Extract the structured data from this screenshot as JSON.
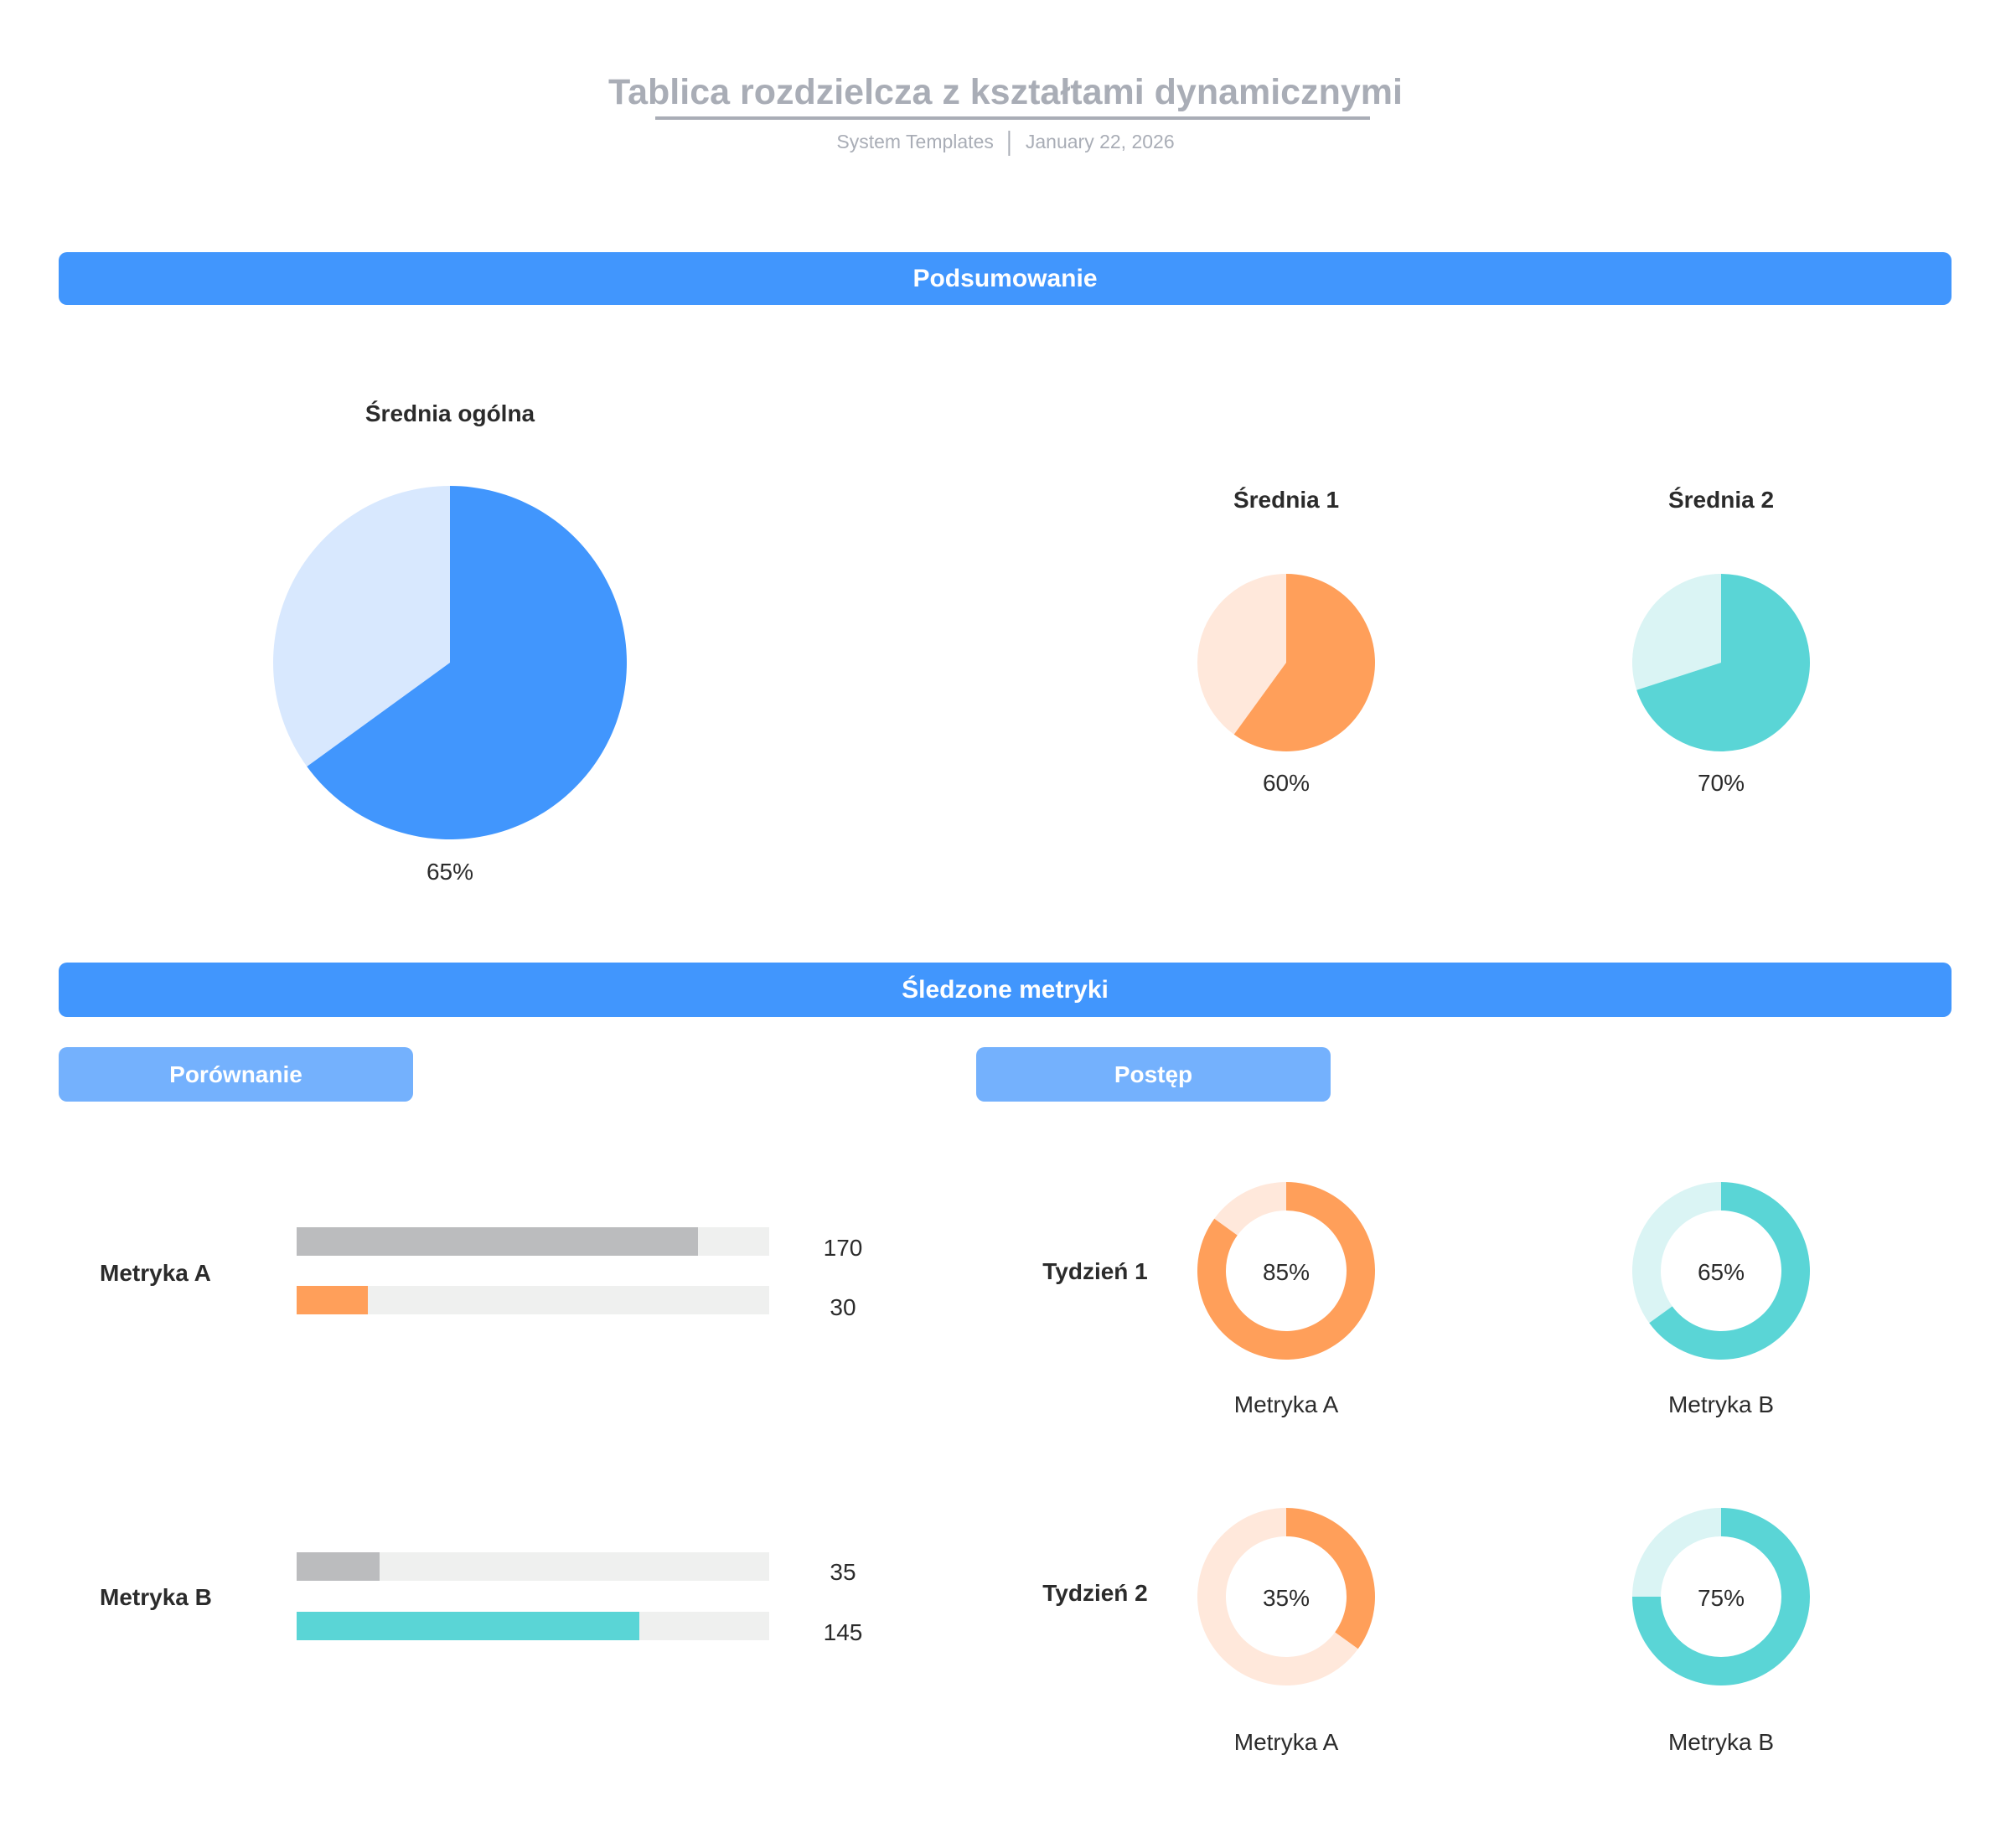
{
  "header": {
    "title": "Tablica rozdzielcza z kształtami dynamicznymi",
    "source": "System Templates",
    "date": "January 22, 2026"
  },
  "sections": {
    "summary": "Podsumowanie",
    "tracked": "Śledzone metryki",
    "comparison": "Porównanie",
    "progress": "Postęp"
  },
  "colors": {
    "blue": "#4196fd",
    "blue_light": "#d8e8fe",
    "orange": "#ff9f5a",
    "orange_light": "#ffe8db",
    "teal": "#5ad5d6",
    "teal_light": "#daf4f4",
    "grey": "#bbbcbe",
    "track": "#eff0ef"
  },
  "chart_data": [
    {
      "type": "pie",
      "title": "Średnia ogólna",
      "value": 65,
      "label": "65%",
      "color": "#4196fd",
      "rest_color": "#d8e8fe"
    },
    {
      "type": "pie",
      "title": "Średnia 1",
      "value": 60,
      "label": "60%",
      "color": "#ff9f5a",
      "rest_color": "#ffe8db"
    },
    {
      "type": "pie",
      "title": "Średnia 2",
      "value": 70,
      "label": "70%",
      "color": "#5ad5d6",
      "rest_color": "#daf4f4"
    },
    {
      "type": "bar",
      "title": "Porównanie",
      "orientation": "horizontal",
      "max": 200,
      "groups": [
        {
          "label": "Metryka A",
          "bars": [
            {
              "value": 170,
              "label": "170",
              "color": "#bbbcbe"
            },
            {
              "value": 30,
              "label": "30",
              "color": "#ff9f5a"
            }
          ]
        },
        {
          "label": "Metryka B",
          "bars": [
            {
              "value": 35,
              "label": "35",
              "color": "#bbbcbe"
            },
            {
              "value": 145,
              "label": "145",
              "color": "#5ad5d6"
            }
          ]
        }
      ]
    },
    {
      "type": "pie",
      "subtype": "donut",
      "title": "Postęp",
      "rows": [
        {
          "label": "Tydzień 1",
          "items": [
            {
              "name": "Metryka A",
              "value": 85,
              "label": "85%",
              "color": "#ff9f5a",
              "rest_color": "#ffe8db"
            },
            {
              "name": "Metryka B",
              "value": 65,
              "label": "65%",
              "color": "#5ad5d6",
              "rest_color": "#daf4f4"
            }
          ]
        },
        {
          "label": "Tydzień 2",
          "items": [
            {
              "name": "Metryka A",
              "value": 35,
              "label": "35%",
              "color": "#ff9f5a",
              "rest_color": "#ffe8db"
            },
            {
              "name": "Metryka B",
              "value": 75,
              "label": "75%",
              "color": "#5ad5d6",
              "rest_color": "#daf4f4"
            }
          ]
        }
      ]
    }
  ]
}
